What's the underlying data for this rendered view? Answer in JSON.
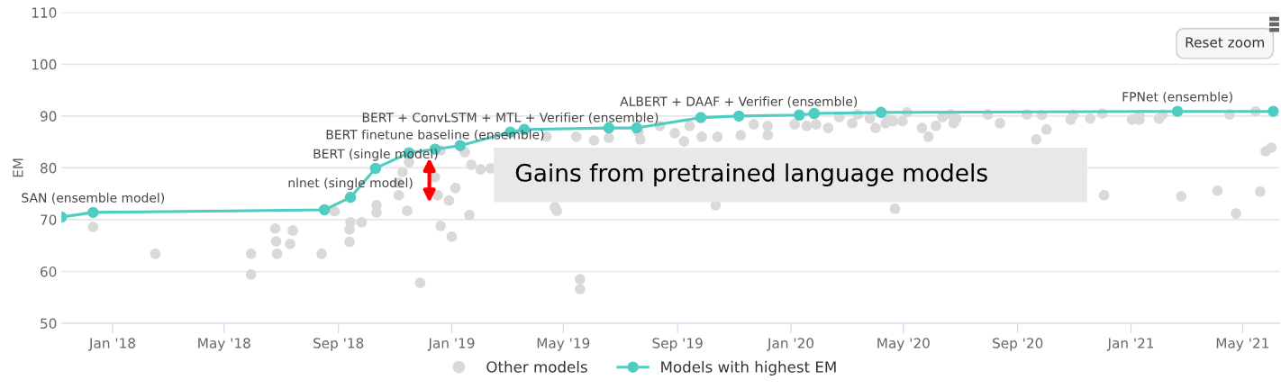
{
  "chart_data": {
    "type": "scatter",
    "ylabel": "EM",
    "xlim": [
      "2017-11-07",
      "2021-06-10"
    ],
    "ylim": [
      50,
      110
    ],
    "yticks": [
      50,
      60,
      70,
      80,
      90,
      100,
      110
    ],
    "xticks": [
      {
        "value": "2018-01-01",
        "label": "Jan '18"
      },
      {
        "value": "2018-05-01",
        "label": "May '18"
      },
      {
        "value": "2018-09-01",
        "label": "Sep '18"
      },
      {
        "value": "2019-01-01",
        "label": "Jan '19"
      },
      {
        "value": "2019-05-01",
        "label": "May '19"
      },
      {
        "value": "2019-09-01",
        "label": "Sep '19"
      },
      {
        "value": "2020-01-01",
        "label": "Jan '20"
      },
      {
        "value": "2020-05-01",
        "label": "May '20"
      },
      {
        "value": "2020-09-01",
        "label": "Sep '20"
      },
      {
        "value": "2021-01-01",
        "label": "Jan '21"
      },
      {
        "value": "2021-05-01",
        "label": "May '21"
      }
    ],
    "grid": "y",
    "legend": "bottom",
    "marker": "circle",
    "series": [
      {
        "name": "Other models",
        "color": "#d9d9d9",
        "x": [
          "2017-12-11",
          "2018-02-16",
          "2018-05-30",
          "2018-05-30",
          "2018-06-25",
          "2018-06-26",
          "2018-06-27",
          "2018-07-14",
          "2018-07-11",
          "2018-08-14",
          "2018-08-28",
          "2018-09-13",
          "2018-09-14",
          "2018-09-13",
          "2018-09-26",
          "2018-10-12",
          "2018-10-12",
          "2018-11-09",
          "2018-11-05",
          "2018-11-05",
          "2018-11-14",
          "2018-11-16",
          "2018-11-28",
          "2018-12-14",
          "2018-12-17",
          "2018-12-20",
          "2018-12-20",
          "2018-12-29",
          "2019-01-01",
          "2019-01-05",
          "2019-01-15",
          "2019-01-20",
          "2019-01-22",
          "2019-02-01",
          "2019-02-12",
          "2019-04-13",
          "2019-04-22",
          "2019-04-24",
          "2019-05-15",
          "2019-05-19",
          "2019-05-19",
          "2019-06-03",
          "2019-06-19",
          "2019-07-21",
          "2019-07-23",
          "2019-08-13",
          "2019-08-29",
          "2019-09-08",
          "2019-09-14",
          "2019-09-27",
          "2019-10-12",
          "2019-10-14",
          "2019-11-08",
          "2019-11-22",
          "2019-12-07",
          "2019-12-07",
          "2020-01-05",
          "2020-01-18",
          "2020-01-28",
          "2020-02-10",
          "2020-02-22",
          "2020-03-07",
          "2020-03-13",
          "2020-03-26",
          "2020-04-01",
          "2020-04-12",
          "2020-04-14",
          "2020-04-20",
          "2020-04-22",
          "2020-04-30",
          "2020-05-05",
          "2020-05-21",
          "2020-05-28",
          "2020-06-05",
          "2020-06-12",
          "2020-06-21",
          "2020-06-24",
          "2020-06-27",
          "2020-07-31",
          "2020-08-13",
          "2020-09-11",
          "2020-09-21",
          "2020-09-27",
          "2020-10-02",
          "2020-10-28",
          "2020-10-31",
          "2020-11-18",
          "2020-12-01",
          "2020-12-03",
          "2021-01-02",
          "2021-01-10",
          "2021-01-10",
          "2021-01-31",
          "2021-02-04",
          "2021-02-24",
          "2021-04-04",
          "2021-04-17",
          "2021-04-24",
          "2021-05-15",
          "2021-05-20",
          "2021-05-26",
          "2021-06-01"
        ],
        "values": [
          68.6,
          63.4,
          63.4,
          59.4,
          68.3,
          65.8,
          63.4,
          67.9,
          65.3,
          63.4,
          71.6,
          68.1,
          69.5,
          65.7,
          69.5,
          72.8,
          71.4,
          79.2,
          74.7,
          77.1,
          71.7,
          81.1,
          57.8,
          78.2,
          74.7,
          68.8,
          83.4,
          73.7,
          66.7,
          76.1,
          83.0,
          70.9,
          80.6,
          79.7,
          79.9,
          86.0,
          72.4,
          71.7,
          86.0,
          58.5,
          56.6,
          85.3,
          85.8,
          86.9,
          85.5,
          88.1,
          86.7,
          85.1,
          88.1,
          86.0,
          72.8,
          86.0,
          86.3,
          88.4,
          88.1,
          86.3,
          88.4,
          88.1,
          88.4,
          87.7,
          89.8,
          88.6,
          90.3,
          89.5,
          87.7,
          88.6,
          89.3,
          89.0,
          72.1,
          89.0,
          90.7,
          87.7,
          86.0,
          88.1,
          89.8,
          90.3,
          88.6,
          89.5,
          90.3,
          88.6,
          90.3,
          85.5,
          90.2,
          87.4,
          89.3,
          90.2,
          89.5,
          90.5,
          74.7,
          89.3,
          90.2,
          89.3,
          89.5,
          90.3,
          74.5,
          75.6,
          90.3,
          71.2,
          90.9,
          75.4,
          83.2,
          83.9
        ]
      },
      {
        "name": "Models with highest EM",
        "type": "line",
        "color": "#4fcdc2",
        "x": [
          "2017-11-07",
          "2017-12-11",
          "2018-08-17",
          "2018-09-14",
          "2018-10-11",
          "2018-11-16",
          "2018-12-14",
          "2019-01-10",
          "2019-03-05",
          "2019-03-20",
          "2019-06-19",
          "2019-07-19",
          "2019-09-26",
          "2019-11-06",
          "2020-01-10",
          "2020-01-26",
          "2020-04-07",
          "2021-02-20",
          "2021-06-03"
        ],
        "values": [
          70.5,
          71.4,
          71.9,
          74.3,
          79.9,
          82.9,
          83.6,
          84.3,
          86.9,
          87.4,
          87.7,
          87.7,
          89.7,
          90.0,
          90.2,
          90.5,
          90.7,
          90.9,
          90.9
        ]
      }
    ],
    "annotations": [
      {
        "text": "SAN (ensemble model)",
        "x": "2017-12-11",
        "y": 71.4
      },
      {
        "text": "nlnet (single model)",
        "x": "2018-09-14",
        "y": 74.3
      },
      {
        "text": "BERT (single model)",
        "x": "2018-10-11",
        "y": 79.9
      },
      {
        "text": "BERT finetune baseline (ensemble)",
        "x": "2018-12-14",
        "y": 83.6
      },
      {
        "text": "BERT + ConvLSTM + MTL + Verifier (ensemble)",
        "x": "2019-03-05",
        "y": 86.9
      },
      {
        "text": "ALBERT + DAAF + Verifier (ensemble)",
        "x": "2019-11-06",
        "y": 90.0
      },
      {
        "text": "FPNet (ensemble)",
        "x": "2021-02-20",
        "y": 90.9
      },
      "Gains from pretrained language models",
      "Reset zoom"
    ]
  }
}
